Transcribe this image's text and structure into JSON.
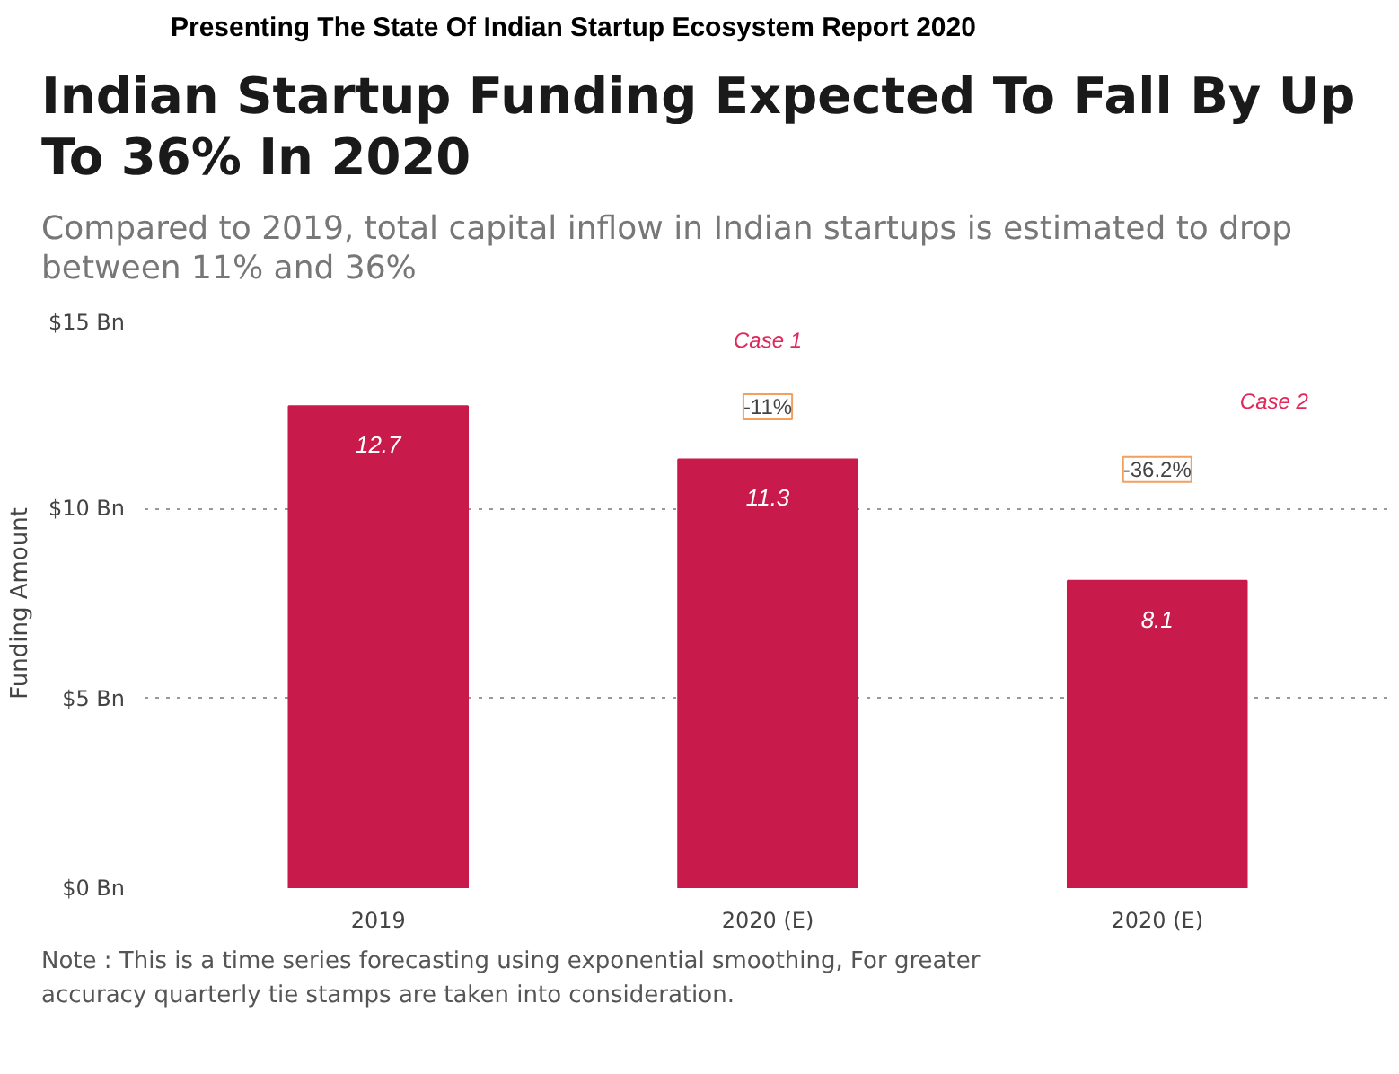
{
  "chart_data": {
    "type": "bar",
    "title": "Indian Startup Funding Expected To Fall By Up To 36% In 2020",
    "subtitle": "Compared to 2019, total capital inflow in Indian startups is estimated to drop between 11% and 36%",
    "ylabel": "Funding Amount",
    "categories": [
      "2019",
      "2020 (E)",
      "2020 (E)"
    ],
    "values": [
      12.7,
      11.3,
      8.1
    ],
    "color": "#c81a4b",
    "ylim": [
      0,
      15
    ],
    "yticks": [
      {
        "value": 0,
        "label": "$0 Bn"
      },
      {
        "value": 5,
        "label": "$5 Bn"
      },
      {
        "value": 10,
        "label": "$10 Bn"
      },
      {
        "value": 15,
        "label": "$15 Bn"
      }
    ],
    "grid": "y",
    "data_labels": true,
    "annotations": [
      "Presenting The State Of Indian Startup Ecosystem Report 2020",
      "Case 1",
      "-11%",
      "Case 2",
      "-36.2%",
      "Note : This is a time series forecasting using exponential smoothing, For greater accuracy quarterly tie stamps are taken into consideration."
    ]
  }
}
